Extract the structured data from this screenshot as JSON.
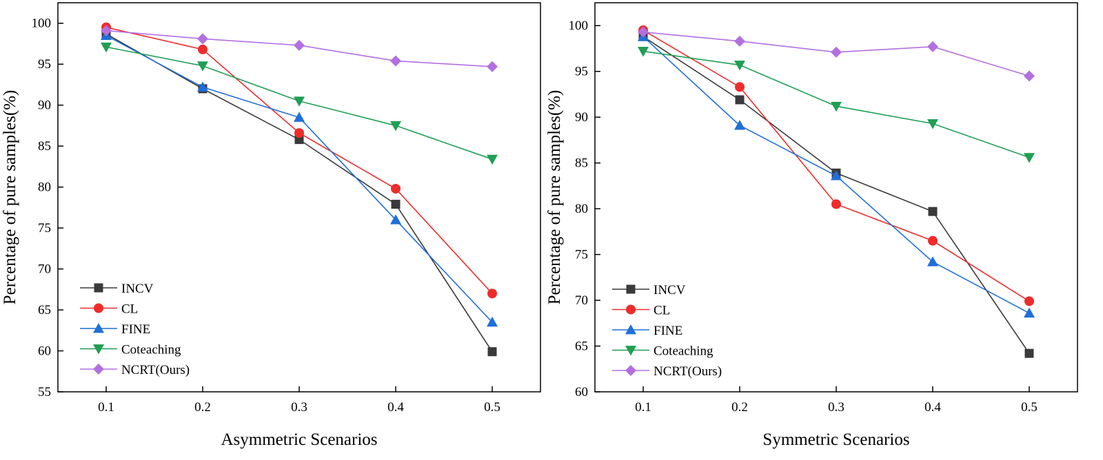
{
  "chart_data": [
    {
      "type": "line",
      "title": "",
      "xlabel": "Asymmetric Scenarios",
      "ylabel": "Percentage of pure samples(%)",
      "x": [
        0.1,
        0.2,
        0.3,
        0.4,
        0.5
      ],
      "xticks": [
        "0.1",
        "0.2",
        "0.3",
        "0.4",
        "0.5"
      ],
      "xlim": [
        0.05,
        0.55
      ],
      "ylim": [
        55,
        102.5
      ],
      "yticks": [
        55,
        60,
        65,
        70,
        75,
        80,
        85,
        90,
        95,
        100
      ],
      "legend_position": "bottom-left",
      "series": [
        {
          "name": "INCV",
          "marker": "square",
          "color": "#3a3a3a",
          "values": [
            98.7,
            92.0,
            85.8,
            77.9,
            59.9
          ]
        },
        {
          "name": "CL",
          "marker": "circle",
          "color": "#ee2c2c",
          "values": [
            99.5,
            96.8,
            86.6,
            79.8,
            67.0
          ]
        },
        {
          "name": "FINE",
          "marker": "triangle-up",
          "color": "#1f6fd9",
          "values": [
            98.5,
            92.2,
            88.5,
            76.0,
            63.5
          ]
        },
        {
          "name": "Coteaching",
          "marker": "triangle-down",
          "color": "#1f9e55",
          "values": [
            97.1,
            94.8,
            90.5,
            87.5,
            83.4
          ]
        },
        {
          "name": "NCRT(Ours)",
          "marker": "diamond",
          "color": "#b36fe0",
          "values": [
            99.1,
            98.1,
            97.3,
            95.4,
            94.7
          ]
        }
      ]
    },
    {
      "type": "line",
      "title": "",
      "xlabel": "Symmetric Scenarios",
      "ylabel": "Percentage of pure samples(%)",
      "x": [
        0.1,
        0.2,
        0.3,
        0.4,
        0.5
      ],
      "xticks": [
        "0.1",
        "0.2",
        "0.3",
        "0.4",
        "0.5"
      ],
      "xlim": [
        0.05,
        0.55
      ],
      "ylim": [
        60,
        102.5
      ],
      "yticks": [
        60,
        65,
        70,
        75,
        80,
        85,
        90,
        95,
        100
      ],
      "legend_position": "bottom-left",
      "series": [
        {
          "name": "INCV",
          "marker": "square",
          "color": "#3a3a3a",
          "values": [
            98.8,
            91.9,
            83.9,
            79.7,
            64.2
          ]
        },
        {
          "name": "CL",
          "marker": "circle",
          "color": "#ee2c2c",
          "values": [
            99.5,
            93.3,
            80.5,
            76.5,
            69.9
          ]
        },
        {
          "name": "FINE",
          "marker": "triangle-up",
          "color": "#1f6fd9",
          "values": [
            98.8,
            89.1,
            83.6,
            74.2,
            68.6
          ]
        },
        {
          "name": "Coteaching",
          "marker": "triangle-down",
          "color": "#1f9e55",
          "values": [
            97.2,
            95.7,
            91.2,
            89.3,
            85.6
          ]
        },
        {
          "name": "NCRT(Ours)",
          "marker": "diamond",
          "color": "#b36fe0",
          "values": [
            99.3,
            98.3,
            97.1,
            97.7,
            94.5
          ]
        }
      ]
    }
  ]
}
